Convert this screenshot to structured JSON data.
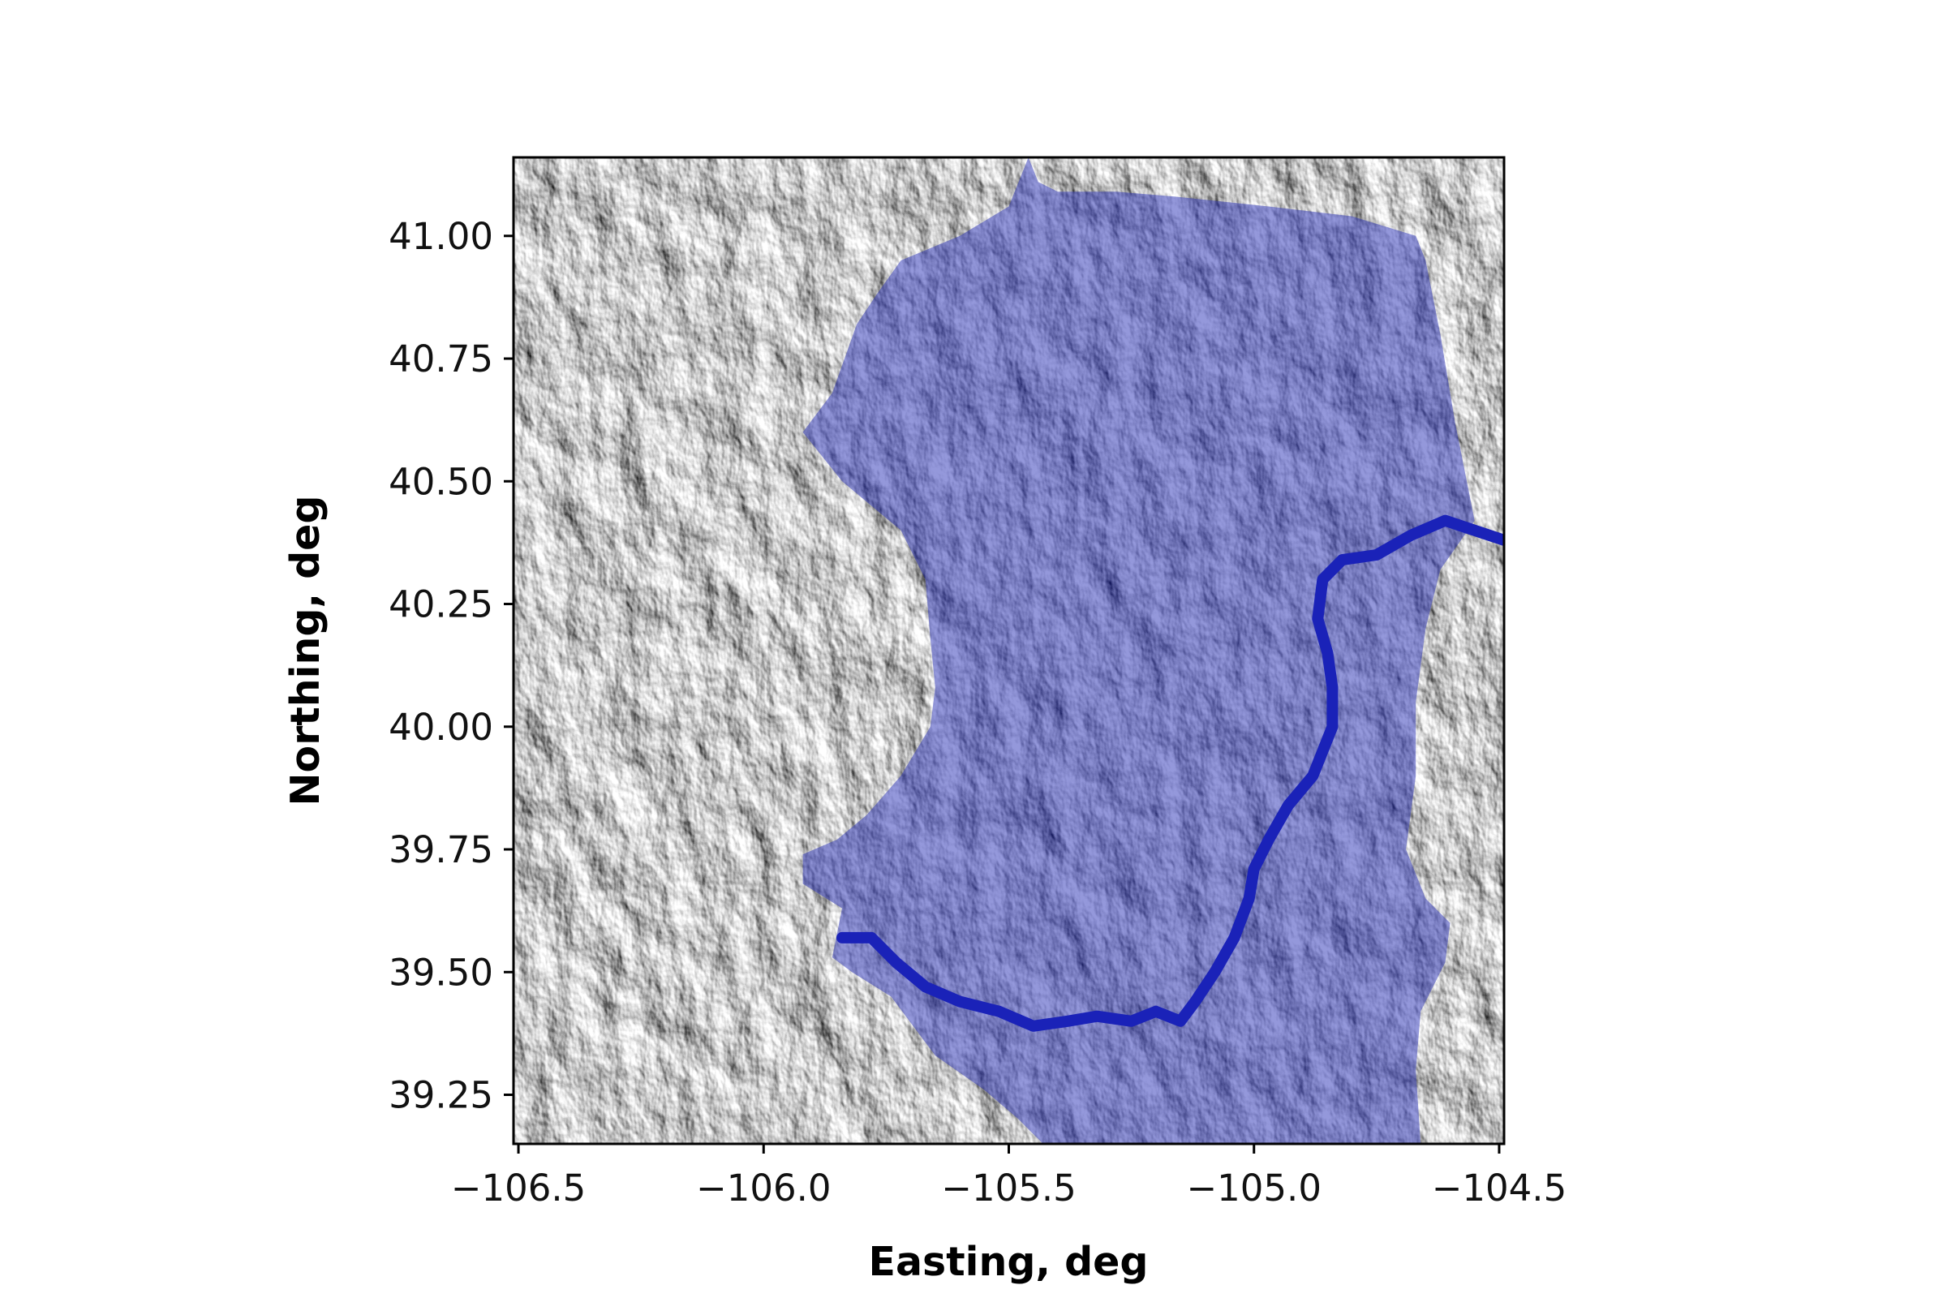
{
  "chart_data": {
    "type": "map",
    "xlabel": "Easting, deg",
    "ylabel": "Northing, deg",
    "xlim": [
      -106.51,
      -104.49
    ],
    "ylim": [
      39.15,
      41.16
    ],
    "xticks": [
      {
        "value": -106.5,
        "label": "−106.5"
      },
      {
        "value": -106.0,
        "label": "−106.0"
      },
      {
        "value": -105.5,
        "label": "−105.5"
      },
      {
        "value": -105.0,
        "label": "−105.0"
      },
      {
        "value": -104.5,
        "label": "−104.5"
      }
    ],
    "yticks": [
      {
        "value": 41.0,
        "label": "41.00"
      },
      {
        "value": 40.75,
        "label": "40.75"
      },
      {
        "value": 40.5,
        "label": "40.50"
      },
      {
        "value": 40.25,
        "label": "40.25"
      },
      {
        "value": 40.0,
        "label": "40.00"
      },
      {
        "value": 39.75,
        "label": "39.75"
      },
      {
        "value": 39.5,
        "label": "39.50"
      },
      {
        "value": 39.25,
        "label": "39.25"
      }
    ],
    "background": "grayscale hillshade relief",
    "basin": {
      "fill": "#2a31b8",
      "opacity": 0.5,
      "boundary": [
        [
          -105.46,
          41.16
        ],
        [
          -105.44,
          41.11
        ],
        [
          -105.4,
          41.09
        ],
        [
          -105.28,
          41.09
        ],
        [
          -105.16,
          41.08
        ],
        [
          -104.97,
          41.06
        ],
        [
          -104.8,
          41.04
        ],
        [
          -104.67,
          41.0
        ],
        [
          -104.65,
          40.95
        ],
        [
          -104.62,
          40.8
        ],
        [
          -104.59,
          40.62
        ],
        [
          -104.55,
          40.42
        ],
        [
          -104.62,
          40.32
        ],
        [
          -104.65,
          40.2
        ],
        [
          -104.67,
          40.05
        ],
        [
          -104.67,
          39.9
        ],
        [
          -104.69,
          39.75
        ],
        [
          -104.65,
          39.65
        ],
        [
          -104.6,
          39.6
        ],
        [
          -104.61,
          39.52
        ],
        [
          -104.66,
          39.42
        ],
        [
          -104.67,
          39.3
        ],
        [
          -104.66,
          39.15
        ],
        [
          -105.2,
          39.15
        ],
        [
          -105.43,
          39.15
        ],
        [
          -105.48,
          39.2
        ],
        [
          -105.55,
          39.26
        ],
        [
          -105.65,
          39.33
        ],
        [
          -105.74,
          39.45
        ],
        [
          -105.82,
          39.5
        ],
        [
          -105.86,
          39.53
        ],
        [
          -105.84,
          39.63
        ],
        [
          -105.92,
          39.68
        ],
        [
          -105.92,
          39.74
        ],
        [
          -105.85,
          39.77
        ],
        [
          -105.79,
          39.82
        ],
        [
          -105.72,
          39.9
        ],
        [
          -105.66,
          40.0
        ],
        [
          -105.65,
          40.08
        ],
        [
          -105.66,
          40.18
        ],
        [
          -105.67,
          40.3
        ],
        [
          -105.72,
          40.4
        ],
        [
          -105.84,
          40.5
        ],
        [
          -105.92,
          40.6
        ],
        [
          -105.86,
          40.68
        ],
        [
          -105.81,
          40.82
        ],
        [
          -105.77,
          40.88
        ],
        [
          -105.72,
          40.95
        ],
        [
          -105.6,
          41.0
        ],
        [
          -105.5,
          41.06
        ],
        [
          -105.46,
          41.16
        ]
      ]
    },
    "river": {
      "color": "#1a22b8",
      "path": [
        [
          -104.49,
          40.38
        ],
        [
          -104.55,
          40.4
        ],
        [
          -104.61,
          40.42
        ],
        [
          -104.68,
          40.39
        ],
        [
          -104.75,
          40.35
        ],
        [
          -104.82,
          40.34
        ],
        [
          -104.86,
          40.3
        ],
        [
          -104.87,
          40.22
        ],
        [
          -104.85,
          40.15
        ],
        [
          -104.84,
          40.08
        ],
        [
          -104.84,
          40.0
        ],
        [
          -104.88,
          39.9
        ],
        [
          -104.93,
          39.84
        ],
        [
          -104.97,
          39.77
        ],
        [
          -105.0,
          39.71
        ],
        [
          -105.01,
          39.65
        ],
        [
          -105.04,
          39.57
        ],
        [
          -105.08,
          39.5
        ],
        [
          -105.12,
          39.44
        ],
        [
          -105.15,
          39.4
        ],
        [
          -105.2,
          39.42
        ],
        [
          -105.25,
          39.4
        ],
        [
          -105.32,
          39.41
        ],
        [
          -105.38,
          39.4
        ],
        [
          -105.45,
          39.39
        ],
        [
          -105.52,
          39.42
        ],
        [
          -105.6,
          39.44
        ],
        [
          -105.67,
          39.47
        ],
        [
          -105.73,
          39.52
        ],
        [
          -105.78,
          39.57
        ],
        [
          -105.84,
          39.57
        ]
      ]
    }
  }
}
